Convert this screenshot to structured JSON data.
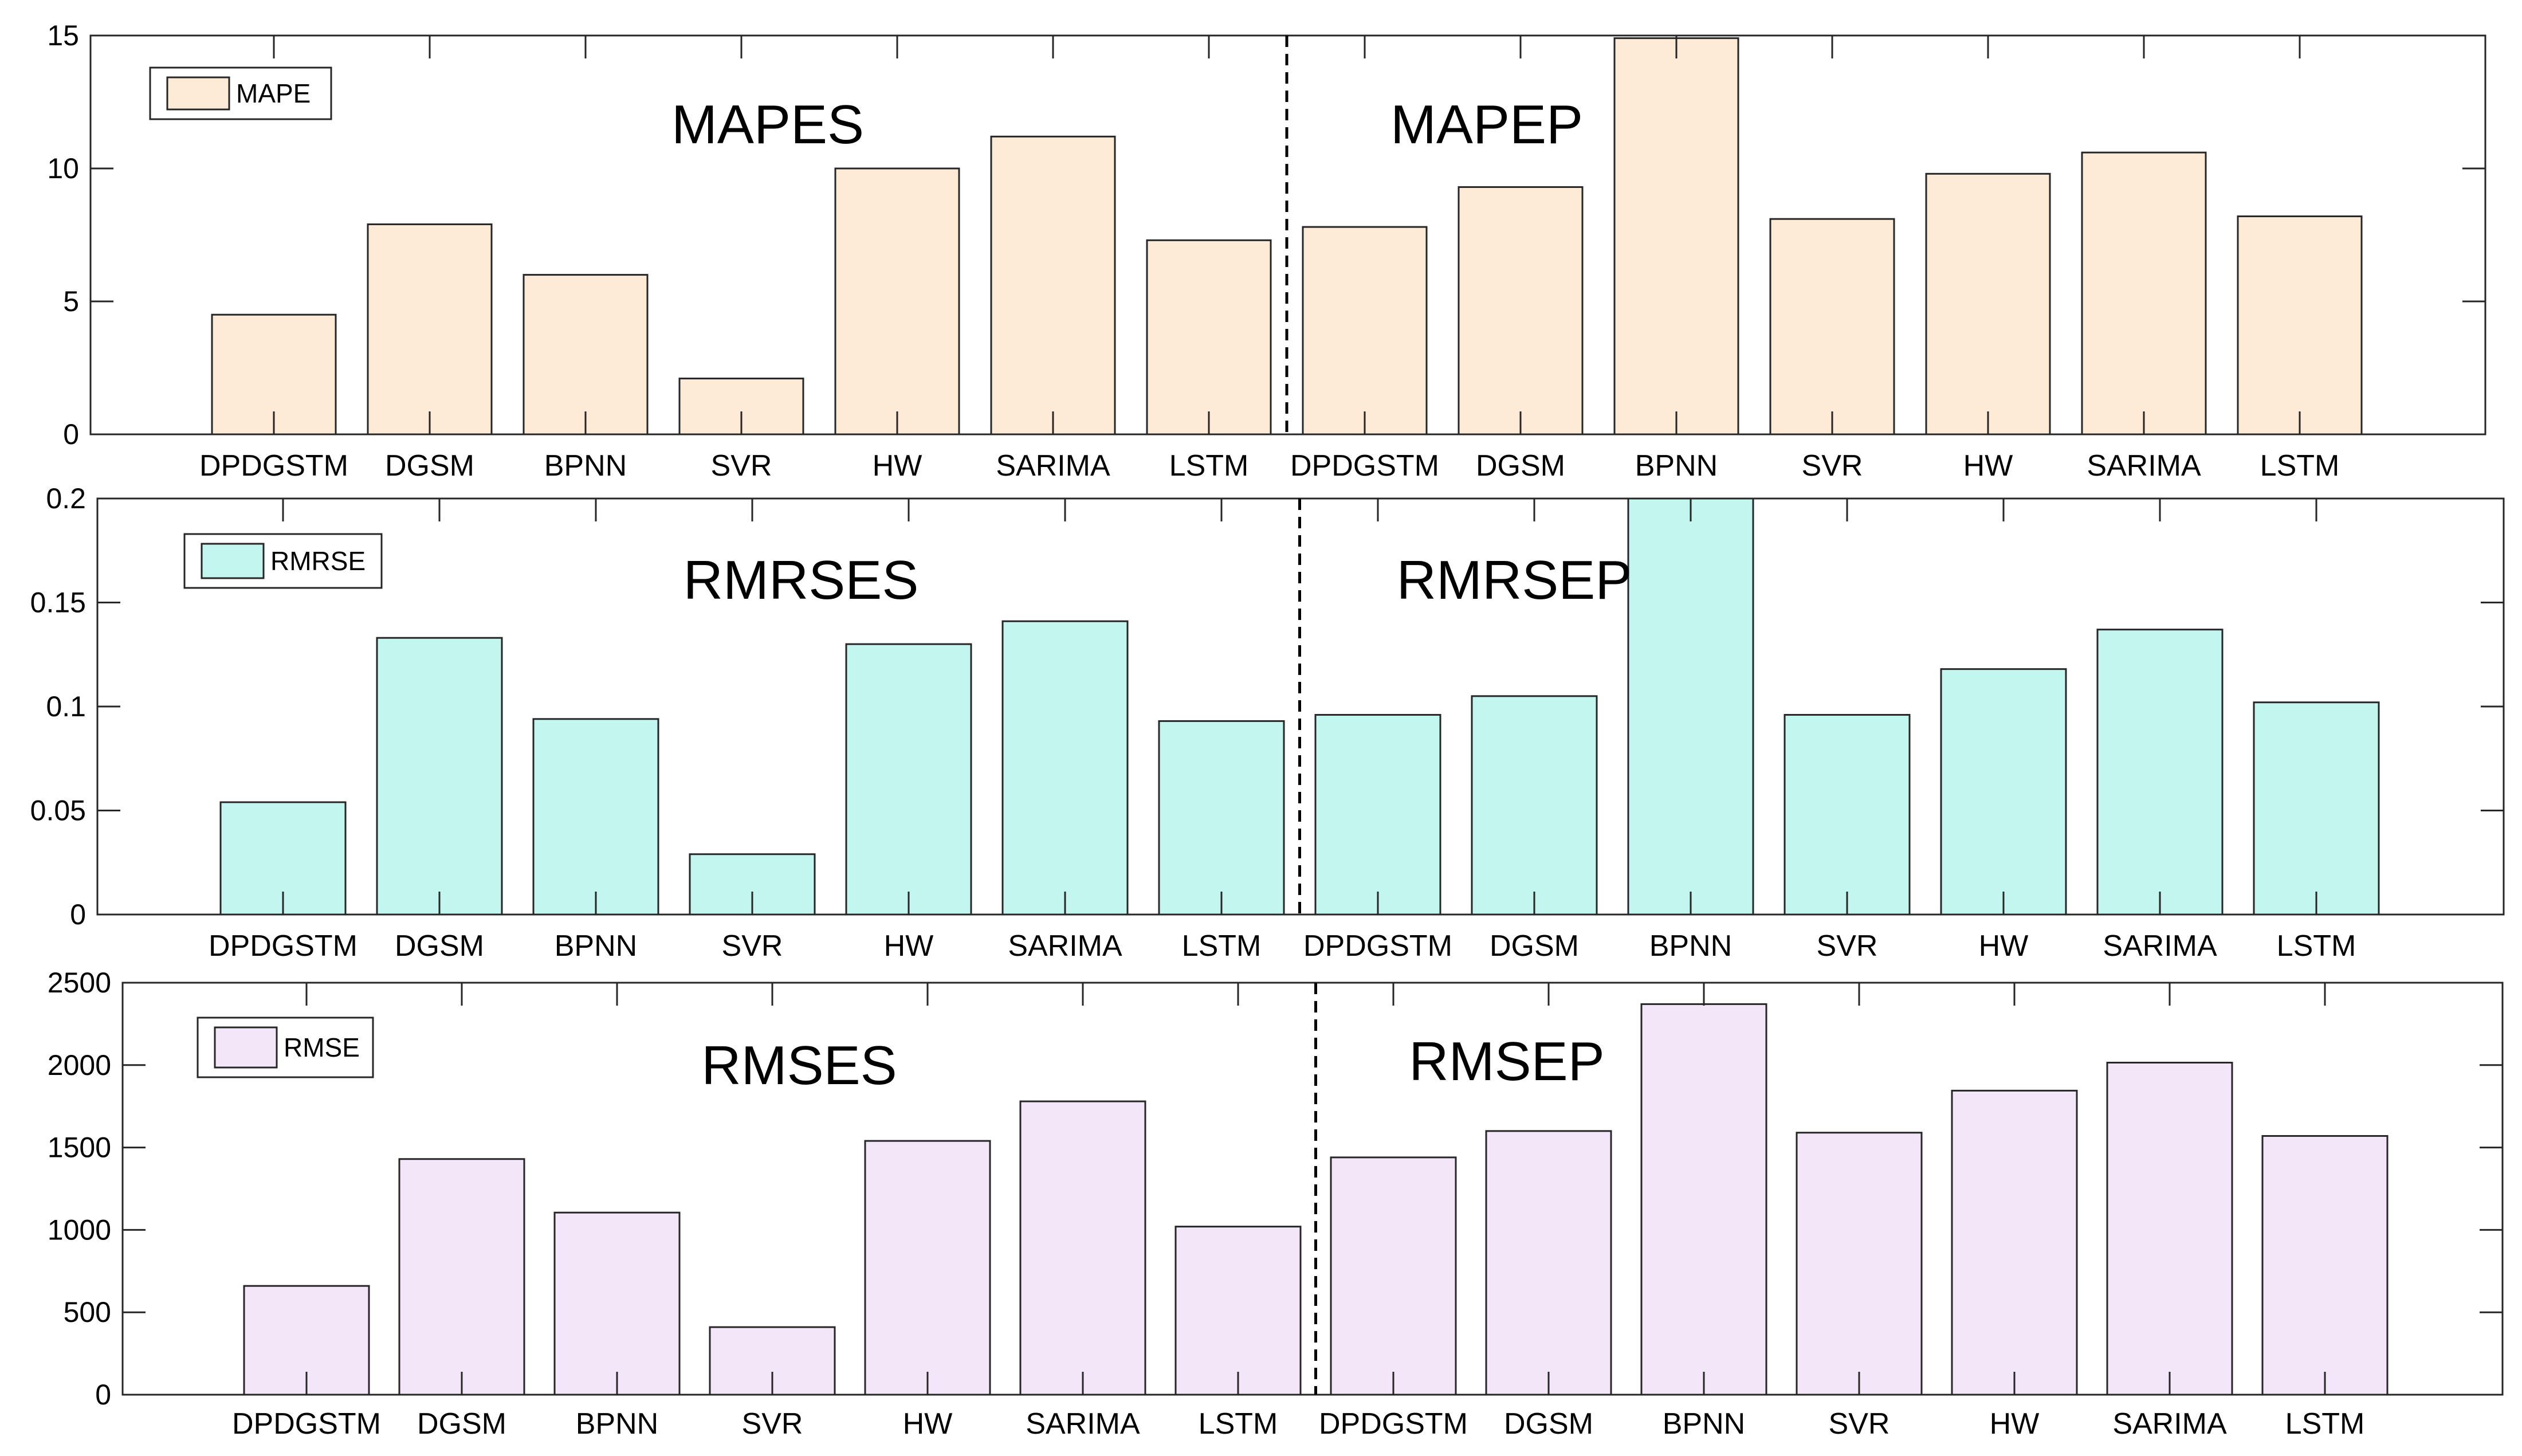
{
  "chart_data": [
    {
      "type": "bar",
      "metric": "MAPE",
      "legend": "MAPE",
      "color": "#fdebd8",
      "categories": [
        "DPDGSTM",
        "DGSM",
        "BPNN",
        "SVR",
        "HW",
        "SARIMA",
        "LSTM",
        "DPDGSTM",
        "DGSM",
        "BPNN",
        "SVR",
        "HW",
        "SARIMA",
        "LSTM"
      ],
      "values": [
        4.5,
        7.9,
        6.0,
        2.1,
        10.0,
        11.2,
        7.3,
        7.8,
        9.3,
        14.9,
        8.1,
        9.8,
        10.6,
        8.2
      ],
      "ylim": [
        0,
        15
      ],
      "yticks": [
        0,
        5,
        10,
        15
      ],
      "ytick_labels": [
        "0",
        "5",
        "10",
        "15"
      ],
      "group_titles": [
        "MAPES",
        "MAPEP"
      ]
    },
    {
      "type": "bar",
      "metric": "RMRSE",
      "legend": "RMRSE",
      "color": "#c4f6f0",
      "categories": [
        "DPDGSTM",
        "DGSM",
        "BPNN",
        "SVR",
        "HW",
        "SARIMA",
        "LSTM",
        "DPDGSTM",
        "DGSM",
        "BPNN",
        "SVR",
        "HW",
        "SARIMA",
        "LSTM"
      ],
      "values": [
        0.054,
        0.133,
        0.094,
        0.029,
        0.13,
        0.141,
        0.093,
        0.096,
        0.105,
        0.2,
        0.096,
        0.118,
        0.137,
        0.102
      ],
      "ylim": [
        0,
        0.2
      ],
      "yticks": [
        0,
        0.05,
        0.1,
        0.15,
        0.2
      ],
      "ytick_labels": [
        "0",
        "0.05",
        "0.1",
        "0.15",
        "0.2"
      ],
      "group_titles": [
        "RMRSES",
        "RMRSEP"
      ]
    },
    {
      "type": "bar",
      "metric": "RMSE",
      "legend": "RMSE",
      "color": "#f2e6f8",
      "categories": [
        "DPDGSTM",
        "DGSM",
        "BPNN",
        "SVR",
        "HW",
        "SARIMA",
        "LSTM",
        "DPDGSTM",
        "DGSM",
        "BPNN",
        "SVR",
        "HW",
        "SARIMA",
        "LSTM"
      ],
      "values": [
        660,
        1430,
        1105,
        410,
        1540,
        1780,
        1020,
        1440,
        1600,
        2370,
        1590,
        1845,
        2015,
        1570
      ],
      "ylim": [
        0,
        2500
      ],
      "yticks": [
        0,
        500,
        1000,
        1500,
        2000,
        2500
      ],
      "ytick_labels": [
        "0",
        "500",
        "1000",
        "1500",
        "2000",
        "2500"
      ],
      "group_titles": [
        "RMSES",
        "RMSEP"
      ]
    }
  ]
}
